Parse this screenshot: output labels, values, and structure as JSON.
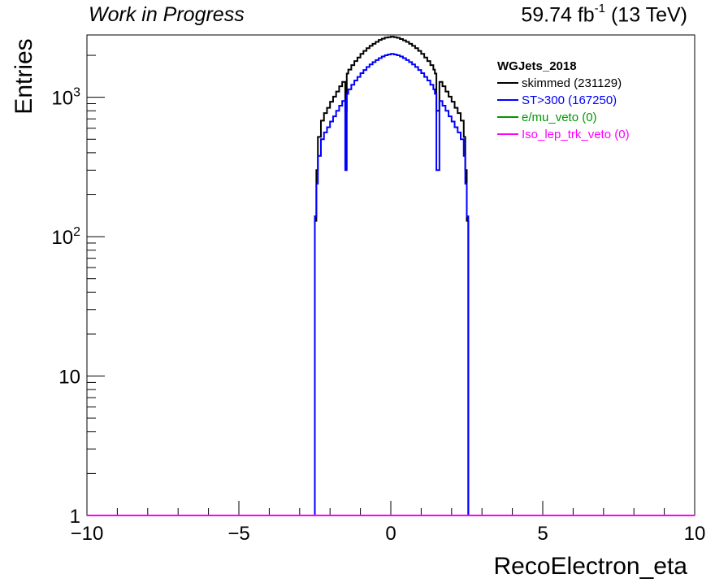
{
  "header": {
    "left_text": "Work in Progress",
    "lumi_value": "59.74 fb",
    "lumi_exponent": "-1",
    "lumi_energy": " (13 TeV)"
  },
  "chart_data": {
    "type": "histogram",
    "title": "",
    "xlabel": "RecoElectron_eta",
    "ylabel": "Entries",
    "xlim": [
      -10,
      10
    ],
    "ylim": [
      1,
      2800
    ],
    "y_scale": "log",
    "x_ticks": [
      -10,
      -5,
      0,
      5,
      10
    ],
    "x_tick_labels": [
      "−10",
      "−5",
      "0",
      "5",
      "10"
    ],
    "y_ticks": [
      1,
      10,
      100,
      1000
    ],
    "y_tick_labels": [
      "1",
      "10",
      "10^2",
      "10^3"
    ],
    "legend": {
      "title": "WGJets_2018",
      "position": "top-right",
      "entries": [
        {
          "label": "skimmed (231129)",
          "color": "#000000"
        },
        {
          "label": "ST>300 (167250)",
          "color": "#0000ff"
        },
        {
          "label": "e/mu_veto (0)",
          "color": "#009900"
        },
        {
          "label": "Iso_lep_trk_veto (0)",
          "color": "#ff00ff"
        }
      ]
    },
    "series": [
      {
        "name": "skimmed (231129)",
        "color": "#000000",
        "points": [
          [
            -2.55,
            1
          ],
          [
            -2.5,
            130
          ],
          [
            -2.45,
            300
          ],
          [
            -2.4,
            520
          ],
          [
            -2.3,
            680
          ],
          [
            -2.2,
            770
          ],
          [
            -2.1,
            840
          ],
          [
            -2.0,
            930
          ],
          [
            -1.9,
            1010
          ],
          [
            -1.8,
            1100
          ],
          [
            -1.7,
            1200
          ],
          [
            -1.6,
            1290
          ],
          [
            -1.5,
            800
          ],
          [
            -1.45,
            1480
          ],
          [
            -1.4,
            1580
          ],
          [
            -1.3,
            1700
          ],
          [
            -1.2,
            1820
          ],
          [
            -1.1,
            1930
          ],
          [
            -1.0,
            2050
          ],
          [
            -0.9,
            2150
          ],
          [
            -0.8,
            2250
          ],
          [
            -0.7,
            2340
          ],
          [
            -0.6,
            2420
          ],
          [
            -0.5,
            2500
          ],
          [
            -0.4,
            2580
          ],
          [
            -0.3,
            2630
          ],
          [
            -0.2,
            2680
          ],
          [
            -0.1,
            2700
          ],
          [
            0.0,
            2720
          ],
          [
            0.1,
            2700
          ],
          [
            0.2,
            2670
          ],
          [
            0.3,
            2620
          ],
          [
            0.4,
            2560
          ],
          [
            0.5,
            2500
          ],
          [
            0.6,
            2420
          ],
          [
            0.7,
            2340
          ],
          [
            0.8,
            2250
          ],
          [
            0.9,
            2150
          ],
          [
            1.0,
            2050
          ],
          [
            1.1,
            1930
          ],
          [
            1.2,
            1820
          ],
          [
            1.3,
            1700
          ],
          [
            1.4,
            1580
          ],
          [
            1.45,
            1480
          ],
          [
            1.5,
            800
          ],
          [
            1.6,
            1290
          ],
          [
            1.7,
            1200
          ],
          [
            1.8,
            1100
          ],
          [
            1.9,
            1010
          ],
          [
            2.0,
            930
          ],
          [
            2.1,
            840
          ],
          [
            2.2,
            770
          ],
          [
            2.3,
            680
          ],
          [
            2.4,
            520
          ],
          [
            2.45,
            300
          ],
          [
            2.5,
            130
          ],
          [
            2.55,
            1
          ]
        ]
      },
      {
        "name": "ST>300 (167250)",
        "color": "#0000ff",
        "points": [
          [
            -2.55,
            1
          ],
          [
            -2.5,
            140
          ],
          [
            -2.45,
            240
          ],
          [
            -2.4,
            380
          ],
          [
            -2.3,
            500
          ],
          [
            -2.2,
            560
          ],
          [
            -2.1,
            610
          ],
          [
            -2.0,
            670
          ],
          [
            -1.9,
            730
          ],
          [
            -1.8,
            800
          ],
          [
            -1.7,
            870
          ],
          [
            -1.6,
            940
          ],
          [
            -1.5,
            300
          ],
          [
            -1.45,
            1060
          ],
          [
            -1.4,
            1140
          ],
          [
            -1.3,
            1230
          ],
          [
            -1.2,
            1320
          ],
          [
            -1.1,
            1400
          ],
          [
            -1.0,
            1490
          ],
          [
            -0.9,
            1570
          ],
          [
            -0.8,
            1650
          ],
          [
            -0.7,
            1720
          ],
          [
            -0.6,
            1790
          ],
          [
            -0.5,
            1850
          ],
          [
            -0.4,
            1910
          ],
          [
            -0.3,
            1960
          ],
          [
            -0.2,
            2000
          ],
          [
            -0.1,
            2030
          ],
          [
            0.0,
            2050
          ],
          [
            0.1,
            2030
          ],
          [
            0.2,
            2000
          ],
          [
            0.3,
            1960
          ],
          [
            0.4,
            1910
          ],
          [
            0.5,
            1850
          ],
          [
            0.6,
            1790
          ],
          [
            0.7,
            1720
          ],
          [
            0.8,
            1650
          ],
          [
            0.9,
            1570
          ],
          [
            1.0,
            1490
          ],
          [
            1.1,
            1400
          ],
          [
            1.2,
            1320
          ],
          [
            1.3,
            1230
          ],
          [
            1.4,
            1140
          ],
          [
            1.45,
            1060
          ],
          [
            1.5,
            300
          ],
          [
            1.6,
            940
          ],
          [
            1.7,
            870
          ],
          [
            1.8,
            800
          ],
          [
            1.9,
            730
          ],
          [
            2.0,
            670
          ],
          [
            2.1,
            610
          ],
          [
            2.2,
            560
          ],
          [
            2.3,
            500
          ],
          [
            2.4,
            380
          ],
          [
            2.45,
            240
          ],
          [
            2.5,
            140
          ],
          [
            2.55,
            1
          ]
        ]
      },
      {
        "name": "e/mu_veto (0)",
        "color": "#009900",
        "points": [
          [
            -10,
            1
          ],
          [
            10,
            1
          ]
        ]
      },
      {
        "name": "Iso_lep_trk_veto (0)",
        "color": "#ff00ff",
        "points": [
          [
            -10,
            1
          ],
          [
            10,
            1
          ]
        ]
      }
    ]
  }
}
